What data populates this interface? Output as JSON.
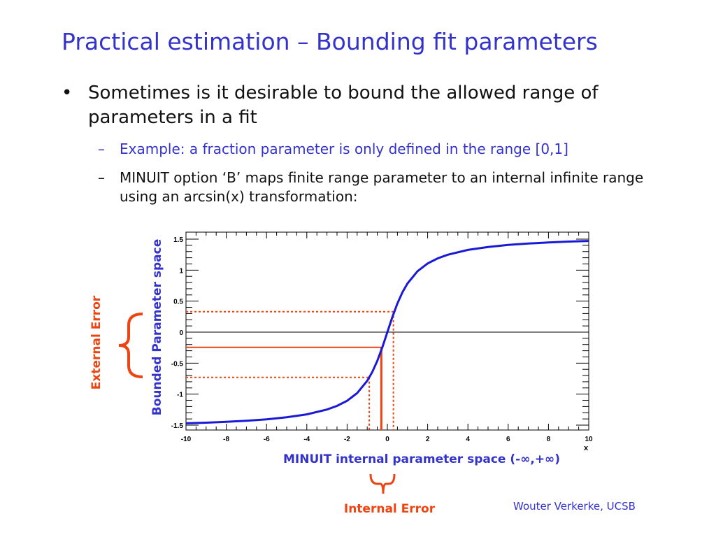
{
  "slide": {
    "title": "Practical estimation – Bounding fit parameters",
    "bullet": {
      "marker": "•",
      "text": "Sometimes is it desirable to bound the allowed range of parameters in a fit"
    },
    "sub_items": [
      {
        "marker": "–",
        "text": "Example: a fraction parameter is only defined in the range [0,1]"
      },
      {
        "marker": "–",
        "text": "MINUIT option ‘B’ maps finite range parameter to an internal infinite range using an arcsin(x) transformation:"
      }
    ],
    "footer": "Wouter Verkerke, UCSB"
  },
  "colors": {
    "title": "#3333cc",
    "curve": "#1a1ad6",
    "annotation": "#ee4411",
    "annotation_text": "#ee4411",
    "axis_title": "#3333cc"
  },
  "chart_data": {
    "type": "line",
    "title": "",
    "function": "arctan(x)",
    "xlabel": "x",
    "ylabel": "Bounded Parameter space",
    "xlim": [
      -10,
      10
    ],
    "ylim": [
      -1.5,
      1.5
    ],
    "x_ticks": [
      "-10",
      "-8",
      "-6",
      "-4",
      "-2",
      "0",
      "2",
      "4",
      "6",
      "8",
      "10"
    ],
    "y_ticks": [
      "-1.5",
      "-1",
      "-0.5",
      "0",
      "0.5",
      "1",
      "1.5"
    ],
    "x_tick_values": [
      -10,
      -8,
      -6,
      -4,
      -2,
      0,
      2,
      4,
      6,
      8,
      10
    ],
    "y_tick_values": [
      -1.5,
      -1,
      -0.5,
      0,
      0.5,
      1,
      1.5
    ],
    "series": [
      {
        "x": [
          -10,
          -9,
          -8,
          -7,
          -6,
          -5,
          -4,
          -3,
          -2.5,
          -2,
          -1.5,
          -1,
          -0.75,
          -0.5,
          -0.25,
          0,
          0.25,
          0.5,
          0.75,
          1,
          1.5,
          2,
          2.5,
          3,
          4,
          5,
          6,
          7,
          8,
          9,
          10
        ],
        "y": [
          -1.471,
          -1.46,
          -1.446,
          -1.429,
          -1.406,
          -1.373,
          -1.326,
          -1.249,
          -1.19,
          -1.107,
          -0.983,
          -0.785,
          -0.644,
          -0.464,
          -0.245,
          0,
          0.245,
          0.464,
          0.644,
          0.785,
          0.983,
          1.107,
          1.19,
          1.249,
          1.326,
          1.373,
          1.406,
          1.429,
          1.446,
          1.46,
          1.471
        ]
      }
    ],
    "annotations": {
      "central_point": {
        "x": -0.3,
        "y": -0.245
      },
      "error_band": {
        "x_low": -0.9,
        "x_high": 0.3,
        "y_low": -0.73,
        "y_high": 0.33
      },
      "x_axis_title": "MINUIT internal parameter space (-∞,+∞)",
      "external_error_label": "External Error",
      "internal_error_label": "Internal Error"
    }
  }
}
